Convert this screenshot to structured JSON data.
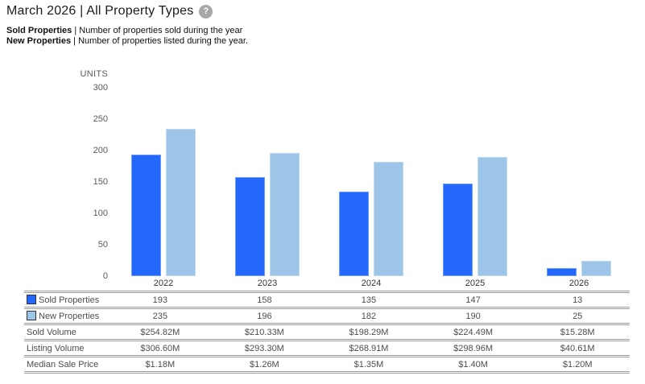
{
  "header": {
    "title": "March 2026 | All Property Types",
    "help_icon_glyph": "?",
    "separator": " | ",
    "legend_lines": [
      {
        "label": "Sold Properties",
        "desc": "Number of properties sold during the year"
      },
      {
        "label": "New Properties",
        "desc": "Number of properties listed during the year."
      }
    ]
  },
  "chart_data": {
    "type": "bar",
    "title": "March 2026 | All Property Types",
    "ylabel": "UNITS",
    "xlabel": "",
    "ylim": [
      0,
      300
    ],
    "yticks": [
      0,
      50,
      100,
      150,
      200,
      250,
      300
    ],
    "grid": false,
    "legend_position": "table-below",
    "categories": [
      "2022",
      "2023",
      "2024",
      "2025",
      "2026"
    ],
    "series": [
      {
        "name": "Sold Properties",
        "color": "#2368fa",
        "values": [
          193,
          158,
          135,
          147,
          13
        ]
      },
      {
        "name": "New Properties",
        "color": "#9dc5e8",
        "values": [
          235,
          196,
          182,
          190,
          25
        ]
      }
    ]
  },
  "table": {
    "rows": [
      {
        "label": "Sold Properties",
        "swatch": "#2368fa",
        "values": [
          "193",
          "158",
          "135",
          "147",
          "13"
        ]
      },
      {
        "label": "New Properties",
        "swatch": "#9dc5e8",
        "values": [
          "235",
          "196",
          "182",
          "190",
          "25"
        ]
      },
      {
        "label": "Sold Volume",
        "values": [
          "$254.82M",
          "$210.33M",
          "$198.29M",
          "$224.49M",
          "$15.28M"
        ]
      },
      {
        "label": "Listing Volume",
        "values": [
          "$306.60M",
          "$293.30M",
          "$268.91M",
          "$298.96M",
          "$40.61M"
        ]
      },
      {
        "label": "Median Sale Price",
        "values": [
          "$1.18M",
          "$1.26M",
          "$1.35M",
          "$1.40M",
          "$1.20M"
        ]
      }
    ]
  },
  "colors": {
    "sold_bar": "#2368fa",
    "new_bar": "#9dc5e8",
    "table_border": "#9e9e9e",
    "text_gray": "#4d4d4d",
    "help_icon_bg": "#a7a7a7"
  }
}
